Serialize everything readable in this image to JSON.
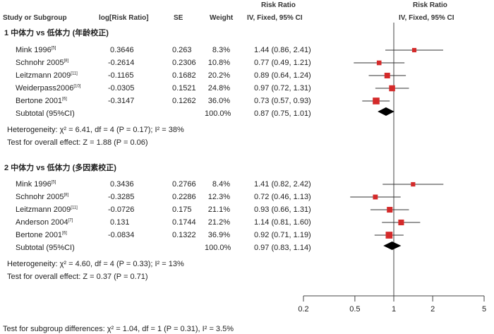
{
  "header": {
    "study_col": "Study or Subgroup",
    "logrr_col": "log[Risk Ratio]",
    "se_col": "SE",
    "weight_col": "Weight",
    "rr_col_top": "Risk Ratio",
    "rr_col_sub": "IV, Fixed, 95% CI",
    "plot_col_top": "Risk Ratio",
    "plot_col_sub": "IV, Fixed, 95% CI"
  },
  "groups": [
    {
      "title": "1 中体力 vs 低体力 (年龄校正)",
      "studies": [
        {
          "name": "Mink 1996",
          "ref": "[5]",
          "logrr": "0.3646",
          "se": "0.263",
          "weight": "8.3%",
          "ci_text": "1.44 (0.86, 2.41)",
          "weight_value": 8.3
        },
        {
          "name": "Schnohr 2005",
          "ref": "[8]",
          "logrr": "-0.2614",
          "se": "0.2306",
          "weight": "10.8%",
          "ci_text": "0.77 (0.49, 1.21)",
          "weight_value": 10.8
        },
        {
          "name": "Leitzmann 2009",
          "ref": "[11]",
          "logrr": "-0.1165",
          "se": "0.1682",
          "weight": "20.2%",
          "ci_text": "0.89 (0.64, 1.24)",
          "weight_value": 20.2
        },
        {
          "name": "Weiderpass2006",
          "ref": "[10]",
          "logrr": "-0.0305",
          "se": "0.1521",
          "weight": "24.8%",
          "ci_text": "0.97 (0.72, 1.31)",
          "weight_value": 24.8
        },
        {
          "name": "Bertone 2001",
          "ref": "[6]",
          "logrr": "-0.3147",
          "se": "0.1262",
          "weight": "36.0%",
          "ci_text": "0.73 (0.57, 0.93)",
          "weight_value": 36.0
        }
      ],
      "subtotal": {
        "label": "Subtotal (95%CI)",
        "weight": "100.0%",
        "ci_text": "0.87 (0.75, 1.01)"
      },
      "heterogeneity": "Heterogeneity: χ² = 6.41, df = 4 (P = 0.17); I² = 38%",
      "overall_effect": "Test for overall effect: Z = 1.88 (P = 0.06)"
    },
    {
      "title": "2 中体力 vs 低体力 (多因素校正)",
      "studies": [
        {
          "name": "Mink 1996",
          "ref": "[5]",
          "logrr": "0.3436",
          "se": "0.2766",
          "weight": "8.4%",
          "ci_text": "1.41 (0.82, 2.42)",
          "weight_value": 8.4
        },
        {
          "name": "Schnohr 2005",
          "ref": "[8]",
          "logrr": "-0.3285",
          "se": "0.2286",
          "weight": "12.3%",
          "ci_text": "0.72 (0.46, 1.13)",
          "weight_value": 12.3
        },
        {
          "name": "Leitzmann 2009",
          "ref": "[11]",
          "logrr": "-0.0726",
          "se": "0.175",
          "weight": "21.1%",
          "ci_text": "0.93 (0.66, 1.31)",
          "weight_value": 21.1
        },
        {
          "name": "Anderson 2004",
          "ref": "[7]",
          "logrr": "0.131",
          "se": "0.1744",
          "weight": "21.2%",
          "ci_text": "1.14 (0.81, 1.60)",
          "weight_value": 21.2
        },
        {
          "name": "Bertone 2001",
          "ref": "[6]",
          "logrr": "-0.0834",
          "se": "0.1322",
          "weight": "36.9%",
          "ci_text": "0.92 (0.71, 1.19)",
          "weight_value": 36.9
        }
      ],
      "subtotal": {
        "label": "Subtotal (95%CI)",
        "weight": "100.0%",
        "ci_text": "0.97 (0.83, 1.14)"
      },
      "heterogeneity": "Heterogeneity: χ² = 4.60, df = 4 (P = 0.33); I² = 13%",
      "overall_effect": "Test for overall effect: Z = 0.37 (P = 0.71)"
    }
  ],
  "subgroup_test": "Test for subgroup differences: χ² = 1.04, df = 1 (P = 0.31), I² = 3.5%",
  "colors": {
    "marker": "#d42a2a",
    "diamond": "#000000",
    "line": "#333333"
  },
  "chart_data": {
    "type": "forest",
    "x_scale": "log",
    "xlim": [
      0.2,
      5
    ],
    "x_ticks": [
      "0.2",
      "0.5",
      "1",
      "2",
      "5"
    ],
    "reference_line": 1,
    "series": [
      {
        "group": 1,
        "points": [
          {
            "rr": 1.44,
            "lo": 0.86,
            "hi": 2.41,
            "weight": 8.3
          },
          {
            "rr": 0.77,
            "lo": 0.49,
            "hi": 1.21,
            "weight": 10.8
          },
          {
            "rr": 0.89,
            "lo": 0.64,
            "hi": 1.24,
            "weight": 20.2
          },
          {
            "rr": 0.97,
            "lo": 0.72,
            "hi": 1.31,
            "weight": 24.8
          },
          {
            "rr": 0.73,
            "lo": 0.57,
            "hi": 0.93,
            "weight": 36.0
          }
        ],
        "pooled": {
          "rr": 0.87,
          "lo": 0.75,
          "hi": 1.01
        }
      },
      {
        "group": 2,
        "points": [
          {
            "rr": 1.41,
            "lo": 0.82,
            "hi": 2.42,
            "weight": 8.4
          },
          {
            "rr": 0.72,
            "lo": 0.46,
            "hi": 1.13,
            "weight": 12.3
          },
          {
            "rr": 0.93,
            "lo": 0.66,
            "hi": 1.31,
            "weight": 21.1
          },
          {
            "rr": 1.14,
            "lo": 0.81,
            "hi": 1.6,
            "weight": 21.2
          },
          {
            "rr": 0.92,
            "lo": 0.71,
            "hi": 1.19,
            "weight": 36.9
          }
        ],
        "pooled": {
          "rr": 0.97,
          "lo": 0.83,
          "hi": 1.14
        }
      }
    ]
  }
}
